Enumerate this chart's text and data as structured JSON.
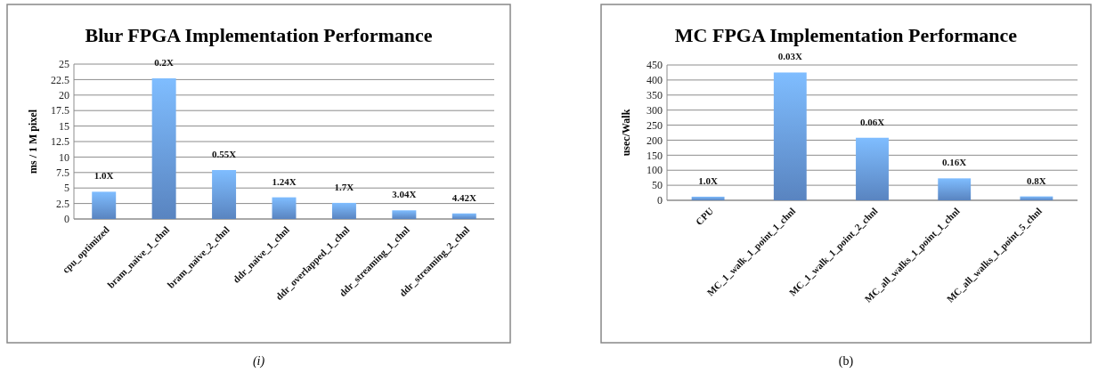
{
  "chart_data": [
    {
      "type": "bar",
      "title": "Blur FPGA Implementation Performance",
      "ylabel": "ms / 1 M pixel",
      "categories": [
        "cpu_optimized",
        "bram_naive_1_chnl",
        "bram_naive_2_chnl",
        "ddr_naive_1_chnl",
        "ddr_overlapped_1_chnl",
        "ddr_streaming_1_chnl",
        "ddr_streaming_2_chnl"
      ],
      "values": [
        4.4,
        22.7,
        7.9,
        3.5,
        2.6,
        1.4,
        0.9
      ],
      "color": "#6a9ee6",
      "ylim": [
        0,
        25
      ],
      "yticks": [
        0,
        2.5,
        5,
        7.5,
        10,
        12.5,
        15,
        17.5,
        20,
        22.5,
        25
      ],
      "grid": "y",
      "annotations": [
        {
          "text": "1.0X",
          "x": "cpu_optimized",
          "y": 4.4
        },
        {
          "text": "0.2X",
          "x": "bram_naive_1_chnl",
          "y": 22.7
        },
        {
          "text": "0.55X",
          "x": "bram_naive_2_chnl",
          "y": 7.9
        },
        {
          "text": "1.24X",
          "x": "ddr_naive_1_chnl",
          "y": 3.5
        },
        {
          "text": "1.7X",
          "x": "ddr_overlapped_1_chnl",
          "y": 2.6
        },
        {
          "text": "3.04X",
          "x": "ddr_streaming_1_chnl",
          "y": 1.4
        },
        {
          "text": "4.42X",
          "x": "ddr_streaming_2_chnl",
          "y": 0.9
        },
        "(i)"
      ]
    },
    {
      "type": "bar",
      "title": "MC FPGA Implementation Performance",
      "ylabel": "usec/Walk",
      "categories": [
        "CPU",
        "MC_1_walk_1_point_1_chnl",
        "MC_1_walk_1_point_2_chnl",
        "MC_all_walks_1_point_1_chnl",
        "MC_all_walks_1_point_5_chnl"
      ],
      "values": [
        12,
        425,
        208,
        73,
        13
      ],
      "color": "#6a9ee6",
      "ylim": [
        0,
        450
      ],
      "yticks": [
        0,
        50,
        100,
        150,
        200,
        250,
        300,
        350,
        400,
        450
      ],
      "grid": "y",
      "annotations": [
        {
          "text": "1.0X",
          "x": "CPU",
          "y": 12
        },
        {
          "text": "0.03X",
          "x": "MC_1_walk_1_point_1_chnl",
          "y": 425
        },
        {
          "text": "0.06X",
          "x": "MC_1_walk_1_point_2_chnl",
          "y": 208
        },
        {
          "text": "0.16X",
          "x": "MC_all_walks_1_point_1_chnl",
          "y": 73
        },
        {
          "text": "0.8X",
          "x": "MC_all_walks_1_point_5_chnl",
          "y": 13
        },
        "(b)"
      ]
    }
  ]
}
